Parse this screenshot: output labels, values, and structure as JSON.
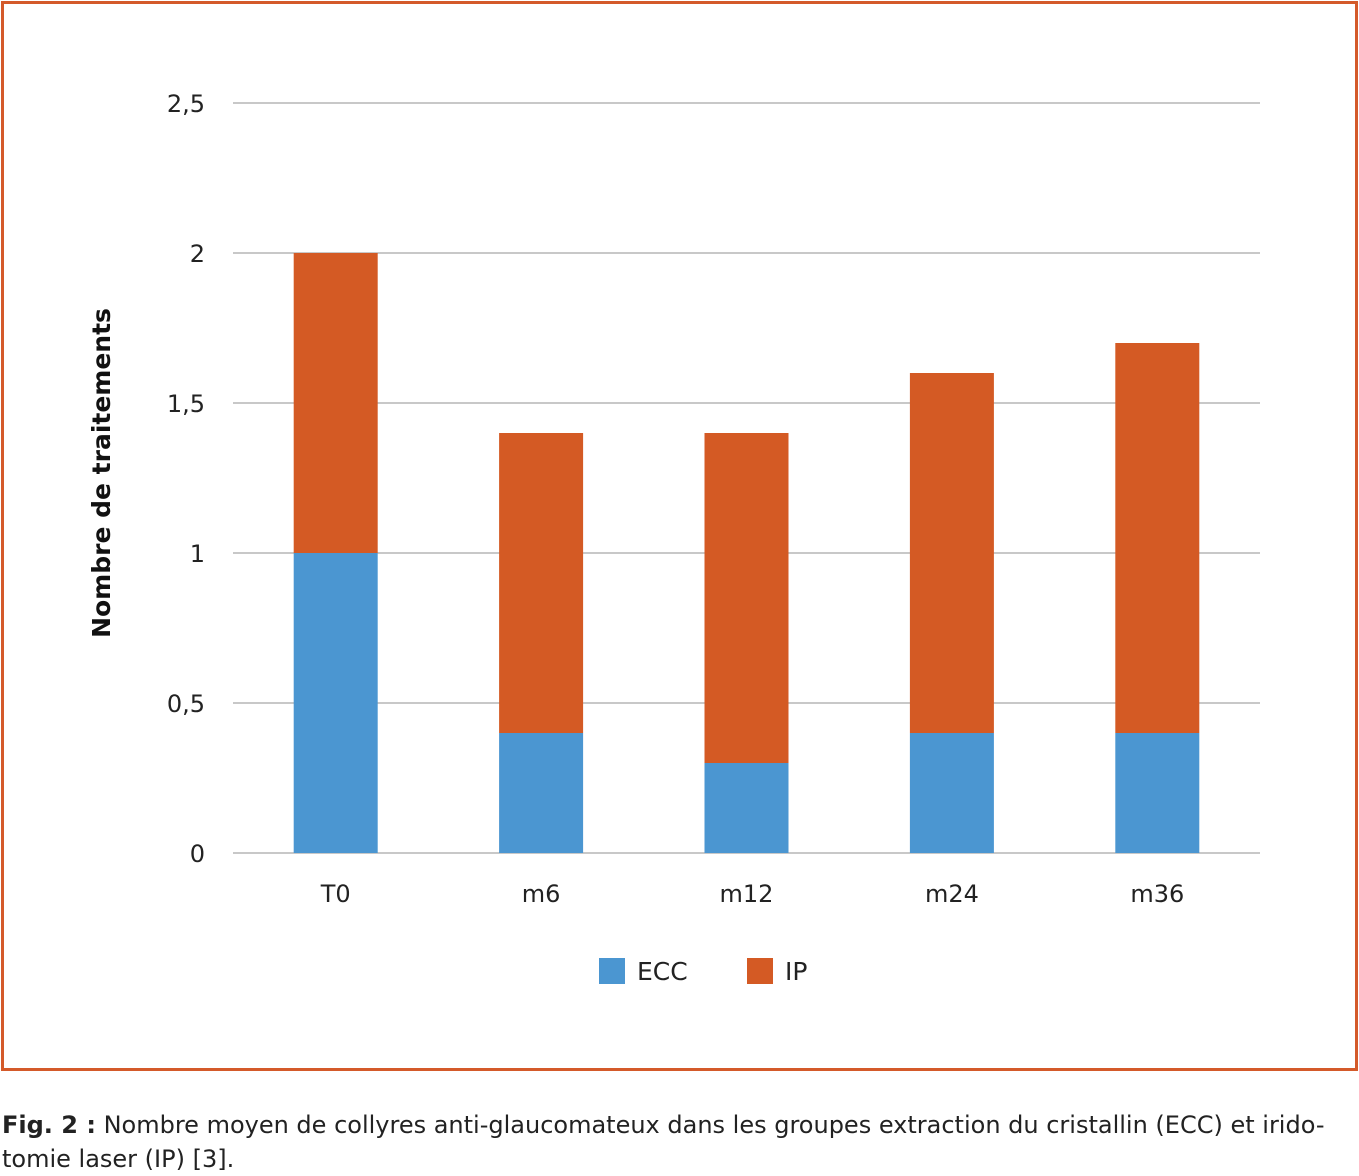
{
  "colors": {
    "frame": "#d45a2a",
    "ecc": "#4b96d1",
    "ip": "#d45a24",
    "grid": "#c8c8c8"
  },
  "caption": {
    "label": "Fig. 2 :",
    "text": "Nombre moyen de collyres anti-glaucomateux dans les groupes extraction du cristallin (ECC) et irido-tomie laser (IP) [3]."
  },
  "chart_data": {
    "type": "bar",
    "stacked": true,
    "categories": [
      "T0",
      "m6",
      "m12",
      "m24",
      "m36"
    ],
    "series": [
      {
        "name": "ECC",
        "values": [
          1.0,
          0.4,
          0.3,
          0.4,
          0.4
        ]
      },
      {
        "name": "IP",
        "values": [
          1.0,
          1.0,
          1.1,
          1.2,
          1.3
        ]
      }
    ],
    "title": "",
    "xlabel": "",
    "ylabel": "Nombre de traitements",
    "ylim": [
      0,
      2.5
    ],
    "yticks": [
      "0",
      "0,5",
      "1",
      "1,5",
      "2",
      "2,5"
    ],
    "grid": true,
    "legend_position": "bottom"
  }
}
